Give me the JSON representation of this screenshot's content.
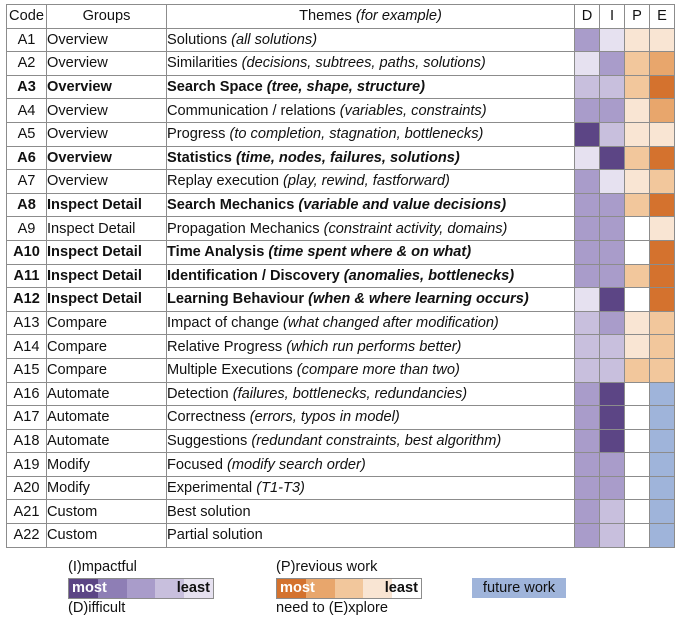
{
  "headers": {
    "code": "Code",
    "groups": "Groups",
    "themes_main": "Themes",
    "themes_note": "(for example)",
    "d": "D",
    "i": "I",
    "p": "P",
    "e": "E"
  },
  "colors": {
    "D1": "#5c4585",
    "D2": "#8e7eb5",
    "D3": "#a99cca",
    "D4": "#c8bfdd",
    "D5": "#e6e1f0",
    "P1": "#d4722e",
    "P2": "#e8a66c",
    "P3": "#f2c79c",
    "P4": "#f9e5d3",
    "F": "#9fb4da",
    "none": "#ffffff"
  },
  "rows": [
    {
      "code": "A1",
      "group": "Overview",
      "theme": "Solutions ",
      "example": "(all solutions)",
      "bold": false,
      "d": "D3",
      "i": "D5",
      "p": "P4",
      "e": "P4"
    },
    {
      "code": "A2",
      "group": "Overview",
      "theme": "Similarities ",
      "example": "(decisions, subtrees, paths, solutions)",
      "bold": false,
      "d": "D5",
      "i": "D3",
      "p": "P3",
      "e": "P2"
    },
    {
      "code": "A3",
      "group": "Overview",
      "theme": "Search Space ",
      "example": "(tree, shape, structure)",
      "bold": true,
      "d": "D4",
      "i": "D4",
      "p": "P3",
      "e": "P1"
    },
    {
      "code": "A4",
      "group": "Overview",
      "theme": "Communication / relations ",
      "example": "(variables, constraints)",
      "bold": false,
      "d": "D3",
      "i": "D3",
      "p": "P4",
      "e": "P2"
    },
    {
      "code": "A5",
      "group": "Overview",
      "theme": "Progress ",
      "example": "(to completion, stagnation, bottlenecks)",
      "bold": false,
      "d": "D1",
      "i": "D4",
      "p": "P4",
      "e": "P4"
    },
    {
      "code": "A6",
      "group": "Overview",
      "theme": "Statistics ",
      "example": "(time, nodes, failures, solutions)",
      "bold": true,
      "d": "D5",
      "i": "D1",
      "p": "P3",
      "e": "P1"
    },
    {
      "code": "A7",
      "group": "Overview",
      "theme": "Replay execution ",
      "example": "(play, rewind, fastforward)",
      "bold": false,
      "d": "D3",
      "i": "D5",
      "p": "P4",
      "e": "P3"
    },
    {
      "code": "A8",
      "group": "Inspect Detail",
      "theme": "Search Mechanics ",
      "example": "(variable and value decisions)",
      "bold": true,
      "d": "D3",
      "i": "D3",
      "p": "P3",
      "e": "P1"
    },
    {
      "code": "A9",
      "group": "Inspect Detail",
      "theme": "Propagation Mechanics ",
      "example": "(constraint activity, domains)",
      "bold": false,
      "d": "D3",
      "i": "D3",
      "p": "none",
      "e": "P4"
    },
    {
      "code": "A10",
      "group": "Inspect Detail",
      "theme": "Time Analysis ",
      "example": "(time spent where & on what)",
      "bold": true,
      "d": "D3",
      "i": "D3",
      "p": "none",
      "e": "P1"
    },
    {
      "code": "A11",
      "group": "Inspect Detail",
      "theme": "Identification / Discovery ",
      "example": "(anomalies, bottlenecks)",
      "bold": true,
      "d": "D3",
      "i": "D3",
      "p": "P3",
      "e": "P1"
    },
    {
      "code": "A12",
      "group": "Inspect Detail",
      "theme": "Learning Behaviour ",
      "example": "(when & where learning occurs)",
      "bold": true,
      "d": "D5",
      "i": "D1",
      "p": "none",
      "e": "P1"
    },
    {
      "code": "A13",
      "group": "Compare",
      "theme": "Impact of change ",
      "example": "(what changed after modification)",
      "bold": false,
      "d": "D4",
      "i": "D3",
      "p": "P4",
      "e": "P3"
    },
    {
      "code": "A14",
      "group": "Compare",
      "theme": "Relative Progress ",
      "example": "(which run performs better)",
      "bold": false,
      "d": "D4",
      "i": "D4",
      "p": "P4",
      "e": "P3"
    },
    {
      "code": "A15",
      "group": "Compare",
      "theme": "Multiple Executions ",
      "example": "(compare more than two)",
      "bold": false,
      "d": "D4",
      "i": "D4",
      "p": "P3",
      "e": "P3"
    },
    {
      "code": "A16",
      "group": "Automate",
      "theme": "Detection ",
      "example": "(failures, bottlenecks, redundancies)",
      "bold": false,
      "d": "D3",
      "i": "D1",
      "p": "none",
      "e": "F"
    },
    {
      "code": "A17",
      "group": "Automate",
      "theme": "Correctness ",
      "example": "(errors, typos in model)",
      "bold": false,
      "d": "D3",
      "i": "D1",
      "p": "none",
      "e": "F"
    },
    {
      "code": "A18",
      "group": "Automate",
      "theme": "Suggestions ",
      "example": "(redundant constraints, best algorithm)",
      "bold": false,
      "d": "D3",
      "i": "D1",
      "p": "none",
      "e": "F"
    },
    {
      "code": "A19",
      "group": "Modify",
      "theme": "Focused ",
      "example": "(modify search order)",
      "bold": false,
      "d": "D3",
      "i": "D3",
      "p": "none",
      "e": "F"
    },
    {
      "code": "A20",
      "group": "Modify",
      "theme": "Experimental ",
      "example": "(T1-T3)",
      "bold": false,
      "d": "D3",
      "i": "D3",
      "p": "none",
      "e": "F"
    },
    {
      "code": "A21",
      "group": "Custom",
      "theme": "Best solution",
      "example": "",
      "bold": false,
      "d": "D3",
      "i": "D4",
      "p": "none",
      "e": "F"
    },
    {
      "code": "A22",
      "group": "Custom",
      "theme": "Partial solution",
      "example": "",
      "bold": false,
      "d": "D3",
      "i": "D4",
      "p": "none",
      "e": "F"
    }
  ],
  "legend": {
    "impactful": "(I)mpactful",
    "difficult": "(D)ifficult",
    "most": "most",
    "least": "least",
    "previous_work": "(P)revious work",
    "explore": "need to (E)xplore",
    "future_work": "future work",
    "purple_scale": [
      "#5c4585",
      "#8e7eb5",
      "#a99cca",
      "#c8bfdd",
      "#e6e1f0"
    ],
    "orange_scale": [
      "#d4722e",
      "#e8a66c",
      "#f2c79c",
      "#f9e5d3",
      "#ffffff"
    ]
  }
}
